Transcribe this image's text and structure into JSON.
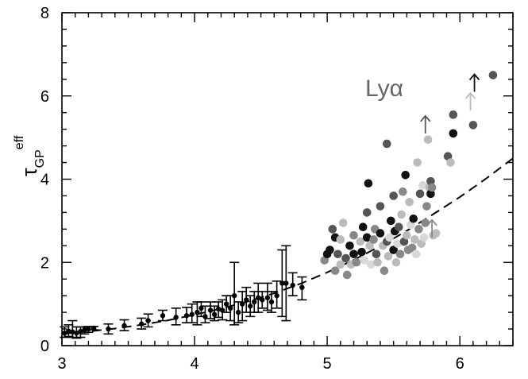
{
  "chart_data": {
    "type": "scatter",
    "title": "",
    "xlabel": "",
    "ylabel": {
      "main": "τ",
      "sub": "GP",
      "sup": "eff"
    },
    "annotation": "Lyα",
    "xlim": [
      3.0,
      6.4
    ],
    "ylim": [
      0,
      8
    ],
    "x_ticks": [
      3,
      4,
      5,
      6
    ],
    "y_ticks": [
      0,
      2,
      4,
      6,
      8
    ],
    "x_minor_step": 0.1,
    "y_minor_step": 0.4,
    "grid": false,
    "errorbar_series": [
      {
        "x": 3.02,
        "y": 0.3,
        "lo": 0.2,
        "hi": 0.45
      },
      {
        "x": 3.05,
        "y": 0.35,
        "lo": 0.22,
        "hi": 0.5
      },
      {
        "x": 3.08,
        "y": 0.33,
        "lo": 0.2,
        "hi": 0.6
      },
      {
        "x": 3.11,
        "y": 0.3,
        "lo": 0.18,
        "hi": 0.45
      },
      {
        "x": 3.14,
        "y": 0.34,
        "lo": 0.2,
        "hi": 0.45
      },
      {
        "x": 3.17,
        "y": 0.38,
        "lo": 0.28,
        "hi": 0.45
      },
      {
        "x": 3.2,
        "y": 0.4,
        "lo": 0.32,
        "hi": 0.46
      },
      {
        "x": 3.24,
        "y": 0.42,
        "lo": 0.38,
        "hi": 0.46
      },
      {
        "x": 3.35,
        "y": 0.4,
        "lo": 0.28,
        "hi": 0.52
      },
      {
        "x": 3.47,
        "y": 0.48,
        "lo": 0.36,
        "hi": 0.62
      },
      {
        "x": 3.6,
        "y": 0.52,
        "lo": 0.4,
        "hi": 0.66
      },
      {
        "x": 3.65,
        "y": 0.6,
        "lo": 0.45,
        "hi": 0.76
      },
      {
        "x": 3.76,
        "y": 0.72,
        "lo": 0.6,
        "hi": 0.85
      },
      {
        "x": 3.86,
        "y": 0.68,
        "lo": 0.5,
        "hi": 0.9
      },
      {
        "x": 3.94,
        "y": 0.72,
        "lo": 0.55,
        "hi": 0.92
      },
      {
        "x": 3.98,
        "y": 0.75,
        "lo": 0.55,
        "hi": 1.0
      },
      {
        "x": 4.02,
        "y": 0.8,
        "lo": 0.5,
        "hi": 1.05
      },
      {
        "x": 4.05,
        "y": 0.9,
        "lo": 0.7,
        "hi": 1.05
      },
      {
        "x": 4.08,
        "y": 0.7,
        "lo": 0.55,
        "hi": 0.95
      },
      {
        "x": 4.12,
        "y": 0.85,
        "lo": 0.65,
        "hi": 1.05
      },
      {
        "x": 4.15,
        "y": 0.75,
        "lo": 0.6,
        "hi": 0.95
      },
      {
        "x": 4.18,
        "y": 0.88,
        "lo": 0.68,
        "hi": 1.05
      },
      {
        "x": 4.21,
        "y": 0.85,
        "lo": 0.62,
        "hi": 1.1
      },
      {
        "x": 4.24,
        "y": 1.0,
        "lo": 0.8,
        "hi": 1.2
      },
      {
        "x": 4.27,
        "y": 0.9,
        "lo": 0.6,
        "hi": 1.2
      },
      {
        "x": 4.3,
        "y": 1.2,
        "lo": 0.5,
        "hi": 2.0
      },
      {
        "x": 4.33,
        "y": 0.8,
        "lo": 0.55,
        "hi": 1.05
      },
      {
        "x": 4.36,
        "y": 1.0,
        "lo": 0.6,
        "hi": 1.3
      },
      {
        "x": 4.39,
        "y": 1.1,
        "lo": 0.8,
        "hi": 1.4
      },
      {
        "x": 4.42,
        "y": 0.95,
        "lo": 0.7,
        "hi": 1.2
      },
      {
        "x": 4.45,
        "y": 1.05,
        "lo": 0.8,
        "hi": 1.3
      },
      {
        "x": 4.48,
        "y": 1.15,
        "lo": 0.8,
        "hi": 1.5
      },
      {
        "x": 4.51,
        "y": 1.1,
        "lo": 0.9,
        "hi": 1.3
      },
      {
        "x": 4.55,
        "y": 1.15,
        "lo": 0.85,
        "hi": 1.5
      },
      {
        "x": 4.58,
        "y": 1.05,
        "lo": 0.8,
        "hi": 1.3
      },
      {
        "x": 4.62,
        "y": 1.2,
        "lo": 0.9,
        "hi": 1.55
      },
      {
        "x": 4.66,
        "y": 1.5,
        "lo": 0.7,
        "hi": 2.3
      },
      {
        "x": 4.69,
        "y": 1.5,
        "lo": 0.6,
        "hi": 2.4
      },
      {
        "x": 4.74,
        "y": 1.45,
        "lo": 1.2,
        "hi": 1.75
      },
      {
        "x": 4.81,
        "y": 1.4,
        "lo": 1.1,
        "hi": 1.65
      }
    ],
    "model_curve": {
      "x": [
        3.0,
        3.2,
        3.4,
        3.6,
        3.8,
        4.0,
        4.2,
        4.4,
        4.6,
        4.8,
        5.0,
        5.2,
        5.4,
        5.6,
        5.8,
        6.0,
        6.2,
        6.4
      ],
      "y": [
        0.28,
        0.34,
        0.41,
        0.5,
        0.61,
        0.74,
        0.89,
        1.06,
        1.26,
        1.49,
        1.76,
        2.06,
        2.39,
        2.76,
        3.16,
        3.57,
        4.02,
        4.5
      ]
    },
    "point_colors": [
      "#111111",
      "#555555",
      "#888888",
      "#bbbbbb",
      "#d8d8d8"
    ],
    "scatter_points": [
      {
        "x": 4.98,
        "y": 2.05,
        "c": 2
      },
      {
        "x": 5.0,
        "y": 2.2,
        "c": 0
      },
      {
        "x": 5.02,
        "y": 2.3,
        "c": 0
      },
      {
        "x": 5.04,
        "y": 2.8,
        "c": 1
      },
      {
        "x": 5.06,
        "y": 2.6,
        "c": 0
      },
      {
        "x": 5.06,
        "y": 1.8,
        "c": 2
      },
      {
        "x": 5.08,
        "y": 2.2,
        "c": 1
      },
      {
        "x": 5.1,
        "y": 2.55,
        "c": 3
      },
      {
        "x": 5.1,
        "y": 1.95,
        "c": 3
      },
      {
        "x": 5.12,
        "y": 2.95,
        "c": 3
      },
      {
        "x": 5.14,
        "y": 2.1,
        "c": 1
      },
      {
        "x": 5.15,
        "y": 1.7,
        "c": 2
      },
      {
        "x": 5.17,
        "y": 2.4,
        "c": 0
      },
      {
        "x": 5.18,
        "y": 1.95,
        "c": 3
      },
      {
        "x": 5.2,
        "y": 2.2,
        "c": 0
      },
      {
        "x": 5.2,
        "y": 2.65,
        "c": 2
      },
      {
        "x": 5.22,
        "y": 2.0,
        "c": 2
      },
      {
        "x": 5.25,
        "y": 2.5,
        "c": 3
      },
      {
        "x": 5.26,
        "y": 2.25,
        "c": 0
      },
      {
        "x": 5.27,
        "y": 2.85,
        "c": 0
      },
      {
        "x": 5.28,
        "y": 2.05,
        "c": 4
      },
      {
        "x": 5.3,
        "y": 2.6,
        "c": 0
      },
      {
        "x": 5.3,
        "y": 3.2,
        "c": 1
      },
      {
        "x": 5.31,
        "y": 3.9,
        "c": 0
      },
      {
        "x": 5.32,
        "y": 2.4,
        "c": 3
      },
      {
        "x": 5.33,
        "y": 1.95,
        "c": 4
      },
      {
        "x": 5.35,
        "y": 2.55,
        "c": 2
      },
      {
        "x": 5.36,
        "y": 2.8,
        "c": 2
      },
      {
        "x": 5.37,
        "y": 2.2,
        "c": 1
      },
      {
        "x": 5.38,
        "y": 2.0,
        "c": 3
      },
      {
        "x": 5.4,
        "y": 2.7,
        "c": 0
      },
      {
        "x": 5.4,
        "y": 3.35,
        "c": 1
      },
      {
        "x": 5.42,
        "y": 2.4,
        "c": 3
      },
      {
        "x": 5.43,
        "y": 1.8,
        "c": 2
      },
      {
        "x": 5.45,
        "y": 2.5,
        "c": 1
      },
      {
        "x": 5.45,
        "y": 4.85,
        "c": 1
      },
      {
        "x": 5.46,
        "y": 2.15,
        "c": 3
      },
      {
        "x": 5.47,
        "y": 2.6,
        "c": 4
      },
      {
        "x": 5.48,
        "y": 3.0,
        "c": 2
      },
      {
        "x": 5.48,
        "y": 3.0,
        "c": 0
      },
      {
        "x": 5.5,
        "y": 2.3,
        "c": 0
      },
      {
        "x": 5.5,
        "y": 3.6,
        "c": 1
      },
      {
        "x": 5.51,
        "y": 2.75,
        "c": 0
      },
      {
        "x": 5.52,
        "y": 2.0,
        "c": 3
      },
      {
        "x": 5.53,
        "y": 2.45,
        "c": 4
      },
      {
        "x": 5.54,
        "y": 2.85,
        "c": 1
      },
      {
        "x": 5.55,
        "y": 2.2,
        "c": 2
      },
      {
        "x": 5.56,
        "y": 3.15,
        "c": 3
      },
      {
        "x": 5.57,
        "y": 3.7,
        "c": 2
      },
      {
        "x": 5.58,
        "y": 2.5,
        "c": 1
      },
      {
        "x": 5.59,
        "y": 4.1,
        "c": 0
      },
      {
        "x": 5.6,
        "y": 2.65,
        "c": 3
      },
      {
        "x": 5.61,
        "y": 2.3,
        "c": 2
      },
      {
        "x": 5.62,
        "y": 3.45,
        "c": 3
      },
      {
        "x": 5.63,
        "y": 2.9,
        "c": 4
      },
      {
        "x": 5.64,
        "y": 2.35,
        "c": 2
      },
      {
        "x": 5.65,
        "y": 3.05,
        "c": 0
      },
      {
        "x": 5.66,
        "y": 2.55,
        "c": 3
      },
      {
        "x": 5.67,
        "y": 2.2,
        "c": 4
      },
      {
        "x": 5.68,
        "y": 4.4,
        "c": 3
      },
      {
        "x": 5.69,
        "y": 2.8,
        "c": 2
      },
      {
        "x": 5.7,
        "y": 3.65,
        "c": 1
      },
      {
        "x": 5.71,
        "y": 2.45,
        "c": 3
      },
      {
        "x": 5.72,
        "y": 3.85,
        "c": 4
      },
      {
        "x": 5.73,
        "y": 2.6,
        "c": 4
      },
      {
        "x": 5.74,
        "y": 2.95,
        "c": 2
      },
      {
        "x": 5.75,
        "y": 3.35,
        "c": 2
      },
      {
        "x": 5.76,
        "y": 4.95,
        "c": 3
      },
      {
        "x": 5.77,
        "y": 3.8,
        "c": 3
      },
      {
        "x": 5.78,
        "y": 3.65,
        "c": 0
      },
      {
        "x": 5.78,
        "y": 3.95,
        "c": 1
      },
      {
        "x": 5.79,
        "y": 3.8,
        "c": 2
      },
      {
        "x": 5.8,
        "y": 2.65,
        "c": 3
      },
      {
        "x": 5.82,
        "y": 2.7,
        "c": 3
      },
      {
        "x": 5.91,
        "y": 4.55,
        "c": 1
      },
      {
        "x": 5.93,
        "y": 4.4,
        "c": 3
      },
      {
        "x": 5.95,
        "y": 5.1,
        "c": 0
      },
      {
        "x": 5.95,
        "y": 5.55,
        "c": 1
      },
      {
        "x": 6.1,
        "y": 5.3,
        "c": 1
      },
      {
        "x": 6.25,
        "y": 6.5,
        "c": 1
      }
    ],
    "lower_limit_arrows": [
      {
        "x": 5.74,
        "y": 5.1,
        "c": 1
      },
      {
        "x": 6.08,
        "y": 5.65,
        "c": 3
      },
      {
        "x": 6.11,
        "y": 6.1,
        "c": 0
      },
      {
        "x": 5.79,
        "y": 2.6,
        "c": 2
      }
    ]
  }
}
